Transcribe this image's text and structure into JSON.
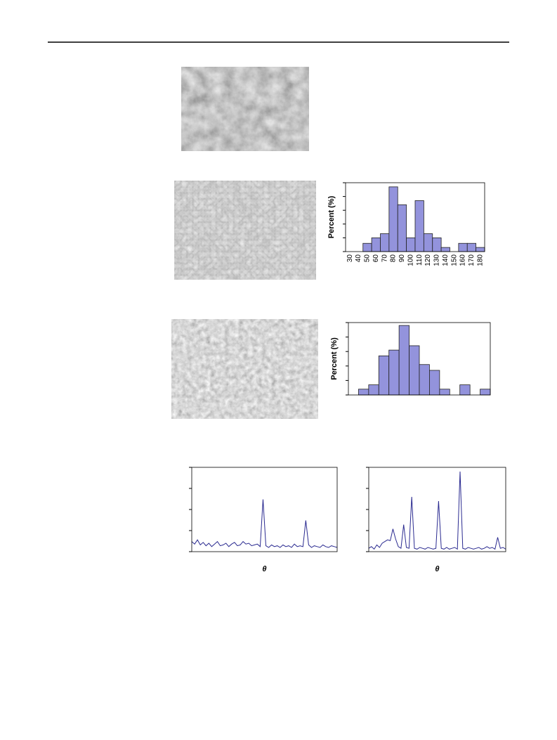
{
  "chart_data": [
    {
      "type": "bar",
      "y_label": "Percent (%)",
      "categories": [
        "30",
        "40",
        "50",
        "60",
        "70",
        "80",
        "90",
        "100",
        "110",
        "120",
        "130",
        "140",
        "150",
        "160",
        "170",
        "180"
      ],
      "values": [
        0,
        0,
        3,
        5,
        6.5,
        23.5,
        17,
        5,
        18.5,
        6.5,
        5,
        1.5,
        0,
        3,
        3,
        1.5
      ],
      "color": "#9393dc",
      "ylim": [
        0,
        25
      ],
      "yticks": [
        0,
        5,
        10,
        15,
        20,
        25
      ]
    },
    {
      "type": "bar",
      "y_label": "Percent (%)",
      "categories": [
        null,
        null,
        null,
        null,
        null,
        null,
        null,
        null,
        null,
        null,
        null,
        null,
        null,
        null
      ],
      "values": [
        0,
        2,
        3.5,
        13.5,
        15.5,
        24,
        17,
        10.5,
        8.5,
        2,
        0,
        3.5,
        0,
        2
      ],
      "color": "#9393dc",
      "ylim": [
        0,
        25
      ],
      "yticks": [
        0,
        5,
        10,
        15,
        20,
        25
      ]
    },
    {
      "type": "line",
      "x_label": "θ",
      "values": [
        12,
        9,
        14,
        8,
        11,
        7,
        10,
        6,
        9,
        12,
        7,
        8,
        10,
        6,
        9,
        11,
        7,
        8,
        12,
        9,
        10,
        7,
        8,
        9,
        6,
        62,
        7,
        5,
        8,
        6,
        7,
        5,
        8,
        6,
        7,
        5,
        9,
        6,
        7,
        6,
        37,
        8,
        5,
        7,
        6,
        5,
        8,
        6,
        5,
        7,
        6,
        5
      ],
      "color": "#2a2a90",
      "ylim": [
        0,
        100
      ],
      "yticks": [
        0,
        25,
        50,
        75,
        100
      ]
    },
    {
      "type": "line",
      "x_label": "θ",
      "values": [
        4,
        6,
        3,
        8,
        5,
        10,
        12,
        14,
        13,
        27,
        15,
        6,
        4,
        32,
        5,
        4,
        65,
        4,
        3,
        5,
        4,
        3,
        5,
        4,
        3,
        4,
        60,
        4,
        3,
        5,
        3,
        4,
        5,
        3,
        95,
        4,
        3,
        5,
        4,
        3,
        4,
        5,
        3,
        4,
        6,
        4,
        5,
        3,
        17,
        4,
        5,
        3
      ],
      "color": "#2a2a90",
      "ylim": [
        0,
        100
      ],
      "yticks": [
        0,
        25,
        50,
        75,
        100
      ]
    }
  ]
}
